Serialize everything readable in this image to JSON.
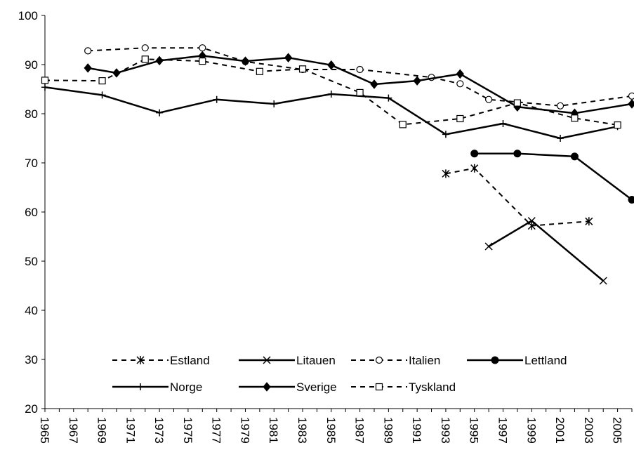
{
  "chart_data": {
    "type": "line",
    "title": "",
    "xlabel": "",
    "ylabel": "",
    "ylim": [
      20,
      100
    ],
    "xlim": [
      1965,
      2006
    ],
    "yticks": [
      20,
      30,
      40,
      50,
      60,
      70,
      80,
      90,
      100
    ],
    "xticks": [
      1965,
      1967,
      1969,
      1971,
      1973,
      1975,
      1977,
      1979,
      1981,
      1983,
      1985,
      1987,
      1989,
      1991,
      1993,
      1995,
      1997,
      1999,
      2001,
      2003,
      2005
    ],
    "grid": false,
    "legend_position": "bottom-inside",
    "series": [
      {
        "name": "Estland",
        "style": "dashed",
        "marker": "star",
        "color": "#000000",
        "points": [
          [
            1993,
            67.8
          ],
          [
            1995,
            68.9
          ],
          [
            1999,
            57.2
          ],
          [
            2003,
            58.1
          ]
        ]
      },
      {
        "name": "Litauen",
        "style": "solid",
        "marker": "x",
        "color": "#000000",
        "points": [
          [
            1996,
            53.0
          ],
          [
            1999,
            58.2
          ],
          [
            2004,
            46.0
          ]
        ]
      },
      {
        "name": "Italien",
        "style": "dashed",
        "marker": "circle-open",
        "color": "#000000",
        "points": [
          [
            1968,
            92.8
          ],
          [
            1972,
            93.4
          ],
          [
            1976,
            93.4
          ],
          [
            1979,
            90.6
          ],
          [
            1983,
            89.0
          ],
          [
            1987,
            89.0
          ],
          [
            1992,
            87.4
          ],
          [
            1994,
            86.1
          ],
          [
            1996,
            82.9
          ],
          [
            2001,
            81.6
          ],
          [
            2006,
            83.6
          ]
        ]
      },
      {
        "name": "Lettland",
        "style": "solid",
        "marker": "circle-filled",
        "color": "#000000",
        "points": [
          [
            1995,
            71.9
          ],
          [
            1998,
            71.9
          ],
          [
            2002,
            71.3
          ],
          [
            2006,
            62.5
          ]
        ]
      },
      {
        "name": "Norge",
        "style": "solid",
        "marker": "plus",
        "color": "#000000",
        "points": [
          [
            1965,
            85.4
          ],
          [
            1969,
            83.8
          ],
          [
            1973,
            80.2
          ],
          [
            1977,
            82.9
          ],
          [
            1981,
            82.0
          ],
          [
            1985,
            84.0
          ],
          [
            1989,
            83.2
          ],
          [
            1993,
            75.8
          ],
          [
            1997,
            78.0
          ],
          [
            2001,
            75.0
          ],
          [
            2005,
            77.4
          ]
        ]
      },
      {
        "name": "Sverige",
        "style": "solid",
        "marker": "diamond-filled",
        "color": "#000000",
        "points": [
          [
            1968,
            89.3
          ],
          [
            1970,
            88.3
          ],
          [
            1973,
            90.8
          ],
          [
            1976,
            91.8
          ],
          [
            1979,
            90.7
          ],
          [
            1982,
            91.4
          ],
          [
            1985,
            89.9
          ],
          [
            1988,
            86.0
          ],
          [
            1991,
            86.7
          ],
          [
            1994,
            88.1
          ],
          [
            1998,
            81.4
          ],
          [
            2002,
            80.1
          ],
          [
            2006,
            82.0
          ]
        ]
      },
      {
        "name": "Tyskland",
        "style": "dashed",
        "marker": "square-open",
        "color": "#000000",
        "points": [
          [
            1965,
            86.8
          ],
          [
            1969,
            86.7
          ],
          [
            1972,
            91.1
          ],
          [
            1976,
            90.7
          ],
          [
            1980,
            88.6
          ],
          [
            1983,
            89.1
          ],
          [
            1987,
            84.3
          ],
          [
            1990,
            77.8
          ],
          [
            1994,
            79.0
          ],
          [
            1998,
            82.2
          ],
          [
            2002,
            79.1
          ],
          [
            2005,
            77.7
          ]
        ]
      }
    ]
  }
}
